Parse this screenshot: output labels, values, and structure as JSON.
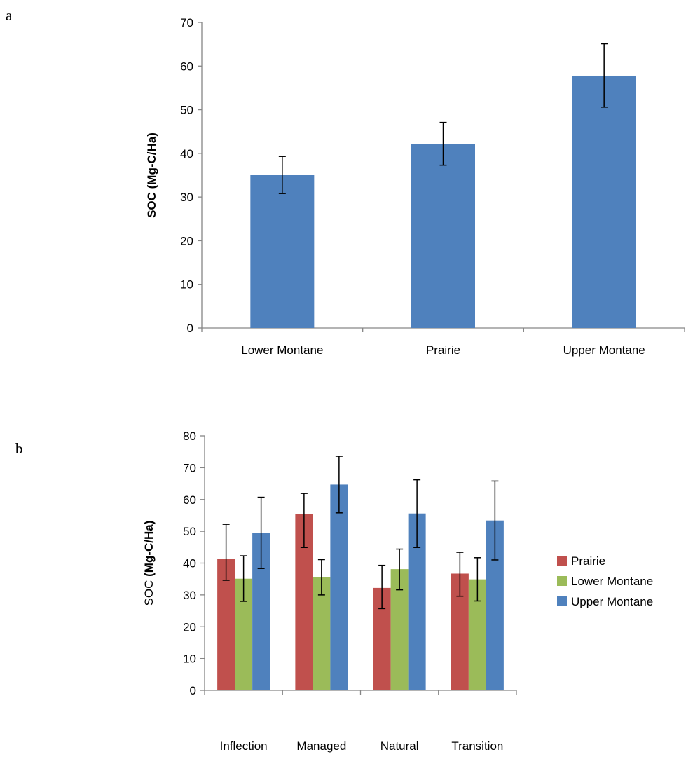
{
  "panels": [
    {
      "letter": "a"
    },
    {
      "letter": "b"
    }
  ],
  "chart_data": [
    {
      "type": "bar",
      "categories": [
        "Lower Montane",
        "Prairie",
        "Upper Montane"
      ],
      "series": [
        {
          "values": [
            35,
            42.2,
            57.8
          ],
          "error_low": [
            30.8,
            37.3,
            50.6
          ],
          "error_high": [
            39.3,
            47.1,
            65.1
          ],
          "color": "#4F81BD"
        }
      ],
      "ylabel_bold": "SOC (Mg-C/Ha)",
      "ylim": [
        0,
        70
      ],
      "yticks": [
        0,
        10,
        20,
        30,
        40,
        50,
        60,
        70
      ],
      "grid": false,
      "legend": "none"
    },
    {
      "type": "bar",
      "categories": [
        "Inflection",
        "Managed",
        "Natural",
        "Transition"
      ],
      "series": [
        {
          "name": "Prairie",
          "values": [
            41.4,
            55.5,
            32.2,
            36.7
          ],
          "error_low": [
            34.6,
            44.9,
            25.7,
            29.6
          ],
          "error_high": [
            52.2,
            61.9,
            39.3,
            43.4
          ],
          "color": "#C0504D"
        },
        {
          "name": "Lower Montane",
          "values": [
            35.1,
            35.6,
            38.1,
            34.9
          ],
          "error_low": [
            28.0,
            30.0,
            31.6,
            28.1
          ],
          "error_high": [
            42.3,
            41.1,
            44.4,
            41.7
          ],
          "color": "#9BBB59"
        },
        {
          "name": "Upper Montane",
          "values": [
            49.5,
            64.7,
            55.6,
            53.4
          ],
          "error_low": [
            38.3,
            55.8,
            44.9,
            41.0
          ],
          "error_high": [
            60.7,
            73.6,
            66.2,
            65.8
          ],
          "color": "#4F81BD"
        }
      ],
      "ylabel_plain": "SOC ",
      "ylabel_bold": "(Mg-C/Ha)",
      "ylim": [
        0,
        80
      ],
      "yticks": [
        0,
        10,
        20,
        30,
        40,
        50,
        60,
        70,
        80
      ],
      "grid": false,
      "legend": "right"
    }
  ]
}
